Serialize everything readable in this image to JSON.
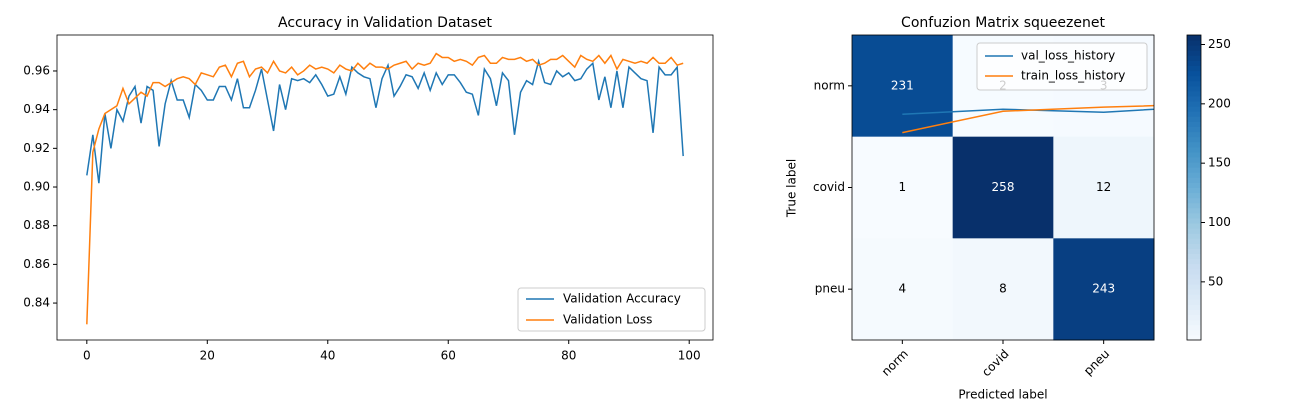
{
  "chart_data": [
    {
      "type": "line",
      "title": "Accuracy in Validation Dataset",
      "x": [
        0,
        1,
        2,
        3,
        4,
        5,
        6,
        7,
        8,
        9,
        10,
        11,
        12,
        13,
        14,
        15,
        16,
        17,
        18,
        19,
        20,
        21,
        22,
        23,
        24,
        25,
        26,
        27,
        28,
        29,
        30,
        31,
        32,
        33,
        34,
        35,
        36,
        37,
        38,
        39,
        40,
        41,
        42,
        43,
        44,
        45,
        46,
        47,
        48,
        49,
        50,
        51,
        52,
        53,
        54,
        55,
        56,
        57,
        58,
        59,
        60,
        61,
        62,
        63,
        64,
        65,
        66,
        67,
        68,
        69,
        70,
        71,
        72,
        73,
        74,
        75,
        76,
        77,
        78,
        79,
        80,
        81,
        82,
        83,
        84,
        85,
        86,
        87,
        88,
        89,
        90,
        91,
        92,
        93,
        94,
        95,
        96,
        97,
        98,
        99
      ],
      "series": [
        {
          "name": "Validation Accuracy",
          "color": "#1f77b4",
          "values": [
            0.906,
            0.927,
            0.902,
            0.938,
            0.92,
            0.94,
            0.934,
            0.947,
            0.952,
            0.933,
            0.952,
            0.95,
            0.921,
            0.943,
            0.955,
            0.945,
            0.945,
            0.936,
            0.953,
            0.95,
            0.945,
            0.945,
            0.952,
            0.952,
            0.945,
            0.956,
            0.941,
            0.941,
            0.95,
            0.961,
            0.945,
            0.929,
            0.953,
            0.94,
            0.956,
            0.955,
            0.956,
            0.954,
            0.958,
            0.953,
            0.947,
            0.948,
            0.957,
            0.948,
            0.962,
            0.959,
            0.957,
            0.956,
            0.941,
            0.956,
            0.963,
            0.947,
            0.952,
            0.958,
            0.957,
            0.951,
            0.959,
            0.95,
            0.959,
            0.953,
            0.958,
            0.958,
            0.954,
            0.949,
            0.948,
            0.937,
            0.961,
            0.956,
            0.942,
            0.959,
            0.955,
            0.927,
            0.949,
            0.955,
            0.953,
            0.965,
            0.954,
            0.953,
            0.96,
            0.957,
            0.959,
            0.955,
            0.956,
            0.961,
            0.964,
            0.945,
            0.957,
            0.941,
            0.96,
            0.941,
            0.962,
            0.959,
            0.956,
            0.955,
            0.928,
            0.962,
            0.958,
            0.958,
            0.962,
            0.916
          ]
        },
        {
          "name": "Validation Loss",
          "color": "#ff7f0e",
          "values": [
            0.829,
            0.918,
            0.93,
            0.938,
            0.94,
            0.942,
            0.951,
            0.943,
            0.946,
            0.949,
            0.947,
            0.954,
            0.954,
            0.952,
            0.954,
            0.956,
            0.957,
            0.956,
            0.953,
            0.959,
            0.958,
            0.957,
            0.962,
            0.963,
            0.957,
            0.964,
            0.965,
            0.957,
            0.961,
            0.962,
            0.959,
            0.965,
            0.96,
            0.959,
            0.962,
            0.958,
            0.96,
            0.963,
            0.961,
            0.962,
            0.961,
            0.959,
            0.963,
            0.961,
            0.96,
            0.964,
            0.961,
            0.964,
            0.962,
            0.962,
            0.961,
            0.963,
            0.964,
            0.965,
            0.961,
            0.964,
            0.963,
            0.964,
            0.969,
            0.967,
            0.967,
            0.965,
            0.966,
            0.965,
            0.963,
            0.967,
            0.968,
            0.964,
            0.964,
            0.967,
            0.966,
            0.966,
            0.967,
            0.965,
            0.966,
            0.963,
            0.964,
            0.966,
            0.966,
            0.968,
            0.965,
            0.962,
            0.968,
            0.966,
            0.965,
            0.968,
            0.964,
            0.968,
            0.961,
            0.966,
            0.965,
            0.964,
            0.965,
            0.964,
            0.967,
            0.964,
            0.964,
            0.967,
            0.963,
            0.964
          ]
        }
      ],
      "xlim": [
        -4.95,
        103.95
      ],
      "xticks": [
        0,
        20,
        40,
        60,
        80,
        100
      ],
      "ylim": [
        0.8209,
        0.9786
      ],
      "yticks": [
        0.84,
        0.86,
        0.88,
        {
          "value": 0.9,
          "label": "0.90"
        },
        0.92,
        0.94,
        0.96
      ],
      "legend": "lower right"
    },
    {
      "type": "heatmap",
      "title": "Confuzion Matrix squeezenet",
      "x_label": "Predicted label",
      "y_label": "True label",
      "x_categories": [
        "norm",
        "covid",
        "pneu"
      ],
      "y_categories": [
        "norm",
        "covid",
        "pneu"
      ],
      "values": [
        [
          231,
          2,
          3
        ],
        [
          1,
          258,
          12
        ],
        [
          4,
          8,
          243
        ]
      ],
      "cmap": "Blues",
      "clim": [
        1,
        258
      ],
      "colorbar_ticks": [
        50,
        100,
        150,
        200,
        250
      ],
      "lines": [
        {
          "name": "val_loss_history",
          "color": "#1f77b4",
          "x": [
            0,
            1,
            2,
            3
          ],
          "values": [
            0.28,
            0.23,
            0.26,
            0.2
          ]
        },
        {
          "name": "train_loss_history",
          "color": "#ff7f0e",
          "x": [
            0,
            1,
            2,
            3
          ],
          "values": [
            0.46,
            0.25,
            0.21,
            0.18
          ]
        }
      ],
      "legend": "upper right"
    }
  ]
}
